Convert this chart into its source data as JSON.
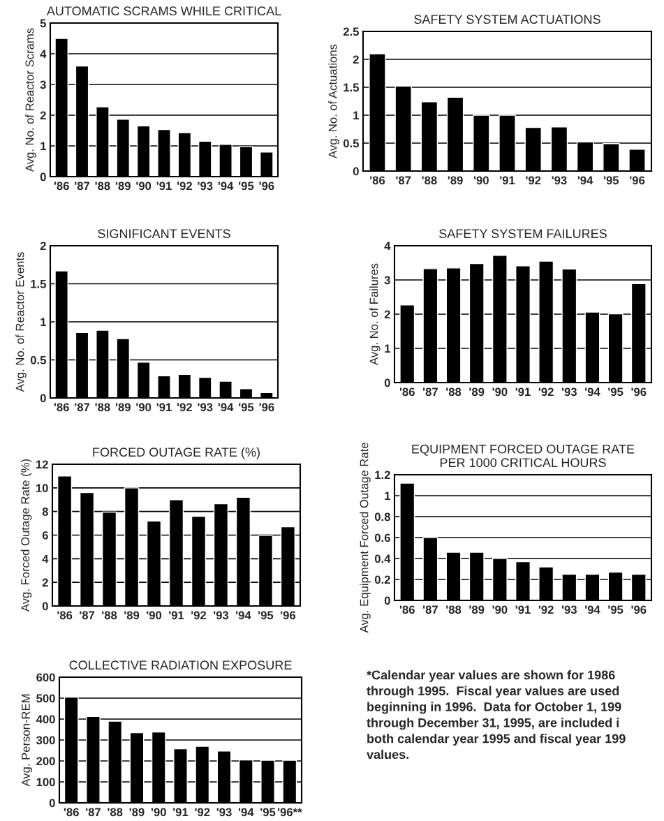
{
  "chart_data": [
    {
      "type": "bar",
      "title": "AUTOMATIC SCRAMS WHILE CRITICAL",
      "ylabel": "Avg. No. of Reactor Scrams",
      "categories": [
        "'86",
        "'87",
        "'88",
        "'89",
        "'90",
        "'91",
        "'92",
        "'93",
        "'94",
        "'95",
        "'96"
      ],
      "values": [
        4.5,
        3.6,
        2.27,
        1.87,
        1.65,
        1.53,
        1.43,
        1.15,
        1.05,
        0.98,
        0.8
      ],
      "color": "#000000",
      "ylim": [
        0,
        5
      ],
      "yticks": [
        0,
        1,
        2,
        3,
        4,
        5
      ],
      "grid": "y"
    },
    {
      "type": "bar",
      "title": "SAFETY SYSTEM ACTUATIONS",
      "ylabel": "Avg. No. of Actuations",
      "categories": [
        "'86",
        "'87",
        "'88",
        "'89",
        "'90",
        "'91",
        "'92",
        "'93",
        "'94",
        "'95",
        "'96"
      ],
      "values": [
        2.1,
        1.52,
        1.24,
        1.32,
        1.0,
        1.0,
        0.78,
        0.79,
        0.52,
        0.49,
        0.39
      ],
      "color": "#000000",
      "ylim": [
        0,
        2.5
      ],
      "yticks": [
        0,
        0.5,
        1,
        1.5,
        2,
        2.5
      ],
      "grid": "y"
    },
    {
      "type": "bar",
      "title": "SIGNIFICANT EVENTS",
      "ylabel": "Avg. No. of Reactor Events",
      "categories": [
        "'86",
        "'87",
        "'88",
        "'89",
        "'90",
        "'91",
        "'92",
        "'93",
        "'94",
        "'95",
        "'96"
      ],
      "values": [
        1.67,
        0.86,
        0.89,
        0.78,
        0.47,
        0.29,
        0.31,
        0.27,
        0.22,
        0.12,
        0.07
      ],
      "color": "#000000",
      "ylim": [
        0,
        2
      ],
      "yticks": [
        0,
        0.5,
        1,
        1.5,
        2
      ],
      "grid": "y"
    },
    {
      "type": "bar",
      "title": "SAFETY SYSTEM FAILURES",
      "ylabel": "Avg. No. of Failures",
      "categories": [
        "'86",
        "'87",
        "'88",
        "'89",
        "'90",
        "'91",
        "'92",
        "'93",
        "'94",
        "'95",
        "'96"
      ],
      "values": [
        2.27,
        3.33,
        3.35,
        3.48,
        3.72,
        3.41,
        3.55,
        3.32,
        2.06,
        2.01,
        2.89
      ],
      "color": "#000000",
      "ylim": [
        0,
        4
      ],
      "yticks": [
        0,
        1,
        2,
        3,
        4
      ],
      "grid": "y"
    },
    {
      "type": "bar",
      "title": "FORCED OUTAGE RATE (%)",
      "ylabel": "Avg. Forced Outage Rate (%)",
      "categories": [
        "'86",
        "'87",
        "'88",
        "'89",
        "'90",
        "'91",
        "'92",
        "'93",
        "'94",
        "'95",
        "'96"
      ],
      "values": [
        11.0,
        9.6,
        7.95,
        10.0,
        7.2,
        9.0,
        7.6,
        8.65,
        9.2,
        5.95,
        6.7
      ],
      "color": "#000000",
      "ylim": [
        0,
        12
      ],
      "yticks": [
        0,
        2,
        4,
        6,
        8,
        10,
        12
      ],
      "grid": "y"
    },
    {
      "type": "bar",
      "title": "EQUIPMENT FORCED OUTAGE RATE\nPER 1000 CRITICAL HOURS",
      "ylabel": "Avg. Equipment Forced Outage Rate",
      "categories": [
        "'86",
        "'87",
        "'88",
        "'89",
        "'90",
        "'91",
        "'92",
        "'93",
        "'94",
        "'95",
        "'96"
      ],
      "values": [
        1.12,
        0.6,
        0.46,
        0.46,
        0.4,
        0.37,
        0.32,
        0.25,
        0.25,
        0.27,
        0.25
      ],
      "color": "#000000",
      "ylim": [
        0,
        1.2
      ],
      "yticks": [
        0,
        0.2,
        0.4,
        0.6,
        0.8,
        1,
        1.2
      ],
      "grid": "y"
    },
    {
      "type": "bar",
      "title": "COLLECTIVE RADIATION EXPOSURE",
      "ylabel": "Avg. Person-REM",
      "categories": [
        "'86",
        "'87",
        "'88",
        "'89",
        "'90",
        "'91",
        "'92",
        "'93",
        "'94",
        "'95",
        "'96**"
      ],
      "values": [
        505,
        412,
        390,
        335,
        338,
        258,
        270,
        247,
        205,
        203,
        203
      ],
      "color": "#000000",
      "ylim": [
        0,
        600
      ],
      "yticks": [
        0,
        100,
        200,
        300,
        400,
        500,
        600
      ],
      "grid": "y"
    },
    {
      "type": "other",
      "annotations": [
        "*Calendar year values are shown for 1986\nthrough 1995.  Fiscal year values are used\nbeginning in 1996.  Data for October 1, 199\nthrough December 31, 1995, are included i\nboth calendar year 1995 and fiscal year 199\nvalues."
      ]
    }
  ]
}
